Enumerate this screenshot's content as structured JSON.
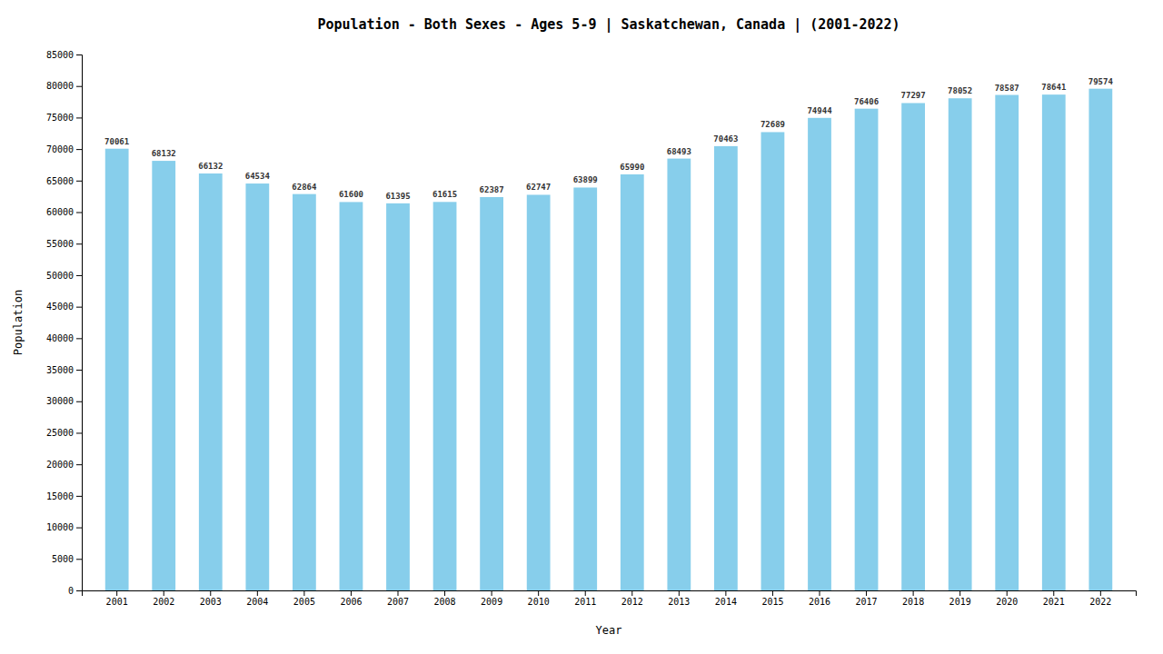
{
  "chart_data": {
    "type": "bar",
    "title": "Population - Both Sexes - Ages 5-9 | Saskatchewan, Canada |  (2001-2022)",
    "x_label": "Year",
    "y_label": "Population",
    "categories": [
      "2001",
      "2002",
      "2003",
      "2004",
      "2005",
      "2006",
      "2007",
      "2008",
      "2009",
      "2010",
      "2011",
      "2012",
      "2013",
      "2014",
      "2015",
      "2016",
      "2017",
      "2018",
      "2019",
      "2020",
      "2021",
      "2022"
    ],
    "values": [
      70061,
      68132,
      66132,
      64534,
      62864,
      61600,
      61395,
      61615,
      62387,
      62747,
      63899,
      65990,
      68493,
      70463,
      72689,
      74944,
      76406,
      77297,
      78052,
      78587,
      78641,
      79574
    ],
    "color": "#87CEEB",
    "ylim": [
      0,
      85000
    ],
    "yticks": [
      0,
      5000,
      10000,
      15000,
      20000,
      25000,
      30000,
      35000,
      40000,
      45000,
      50000,
      55000,
      60000,
      65000,
      70000,
      75000,
      80000,
      85000
    ],
    "grid": false,
    "data_labels": true
  }
}
